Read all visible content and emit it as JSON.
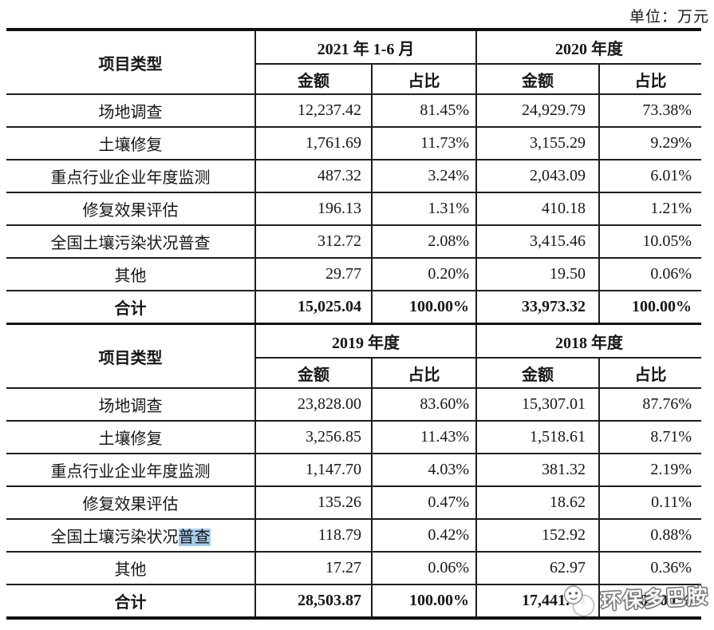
{
  "unit_label": "单位：万元",
  "watermark": {
    "text": "环保多巴胺"
  },
  "colors": {
    "text": "#161616",
    "table_border": "#1e1e1e",
    "selection_highlight": "#a6cbe9",
    "watermark_fill": "#ffffff",
    "watermark_outline": "#6e6e6e"
  },
  "tables": [
    {
      "corner_header": "项目类型",
      "column_groups": [
        "2021 年 1-6 月",
        "2020 年度"
      ],
      "sub_headers": [
        "金额",
        "占比"
      ],
      "rows": [
        {
          "label": "场地调查",
          "values": [
            "12,237.42",
            "81.45%",
            "24,929.79",
            "73.38%"
          ]
        },
        {
          "label": "土壤修复",
          "values": [
            "1,761.69",
            "11.73%",
            "3,155.29",
            "9.29%"
          ]
        },
        {
          "label": "重点行业企业年度监测",
          "values": [
            "487.32",
            "3.24%",
            "2,043.09",
            "6.01%"
          ]
        },
        {
          "label": "修复效果评估",
          "values": [
            "196.13",
            "1.31%",
            "410.18",
            "1.21%"
          ]
        },
        {
          "label": "全国土壤污染状况普查",
          "values": [
            "312.72",
            "2.08%",
            "3,415.46",
            "10.05%"
          ]
        },
        {
          "label": "其他",
          "values": [
            "29.77",
            "0.20%",
            "19.50",
            "0.06%"
          ]
        },
        {
          "label": "合计",
          "bold": true,
          "values": [
            "15,025.04",
            "100.00%",
            "33,973.32",
            "100.00%"
          ]
        }
      ]
    },
    {
      "corner_header": "项目类型",
      "column_groups": [
        "2019 年度",
        "2018 年度"
      ],
      "sub_headers": [
        "金额",
        "占比"
      ],
      "rows": [
        {
          "label": "场地调查",
          "values": [
            "23,828.00",
            "83.60%",
            "15,307.01",
            "87.76%"
          ]
        },
        {
          "label": "土壤修复",
          "values": [
            "3,256.85",
            "11.43%",
            "1,518.61",
            "8.71%"
          ]
        },
        {
          "label": "重点行业企业年度监测",
          "values": [
            "1,147.70",
            "4.03%",
            "381.32",
            "2.19%"
          ]
        },
        {
          "label": "修复效果评估",
          "values": [
            "135.26",
            "0.47%",
            "18.62",
            "0.11%"
          ]
        },
        {
          "label": "全国土壤污染状况普查",
          "label_prefix": "全国土壤污染状况",
          "label_highlight": "普查",
          "values": [
            "118.79",
            "0.42%",
            "152.92",
            "0.88%"
          ]
        },
        {
          "label": "其他",
          "values": [
            "17.27",
            "0.06%",
            "62.97",
            "0.36%"
          ]
        },
        {
          "label": "合计",
          "bold": true,
          "values": [
            "28,503.87",
            "100.00%",
            "17,441.44",
            "100.00%"
          ]
        }
      ]
    }
  ]
}
